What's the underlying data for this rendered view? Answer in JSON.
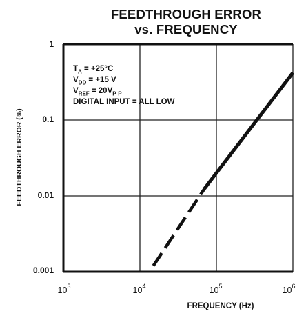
{
  "chart_data": {
    "type": "line",
    "title_line1": "FEEDTHROUGH ERROR",
    "title_line2": "vs. FREQUENCY",
    "xlabel": "FREQUENCY (Hz)",
    "ylabel": "FEEDTHROUGH ERROR (%)",
    "x_scale": "log",
    "y_scale": "log",
    "xlim": [
      1000,
      1000000
    ],
    "ylim": [
      0.001,
      1
    ],
    "x_ticks": [
      {
        "base": "10",
        "exp": "3"
      },
      {
        "base": "10",
        "exp": "4"
      },
      {
        "base": "10",
        "exp": "5"
      },
      {
        "base": "10",
        "exp": "6"
      }
    ],
    "y_ticks": [
      "0.001",
      "0.01",
      "0.1",
      "1"
    ],
    "grid": true,
    "series": [
      {
        "solid": {
          "x": [
            70000,
            1000000
          ],
          "y": [
            0.0125,
            0.42
          ]
        },
        "dashed": {
          "x": [
            15000,
            70000
          ],
          "y": [
            0.0012,
            0.0125
          ]
        }
      }
    ],
    "annotation": {
      "line1": {
        "main": "T",
        "sub": "A",
        "rest": " = +25°C"
      },
      "line2": {
        "main": "V",
        "sub": "DD",
        "rest": " = +15 V"
      },
      "line3": {
        "main": "V",
        "sub": "REF",
        "rest": " = 20V",
        "sub2": "P-P"
      },
      "line4": "DIGITAL INPUT = ALL LOW"
    }
  }
}
